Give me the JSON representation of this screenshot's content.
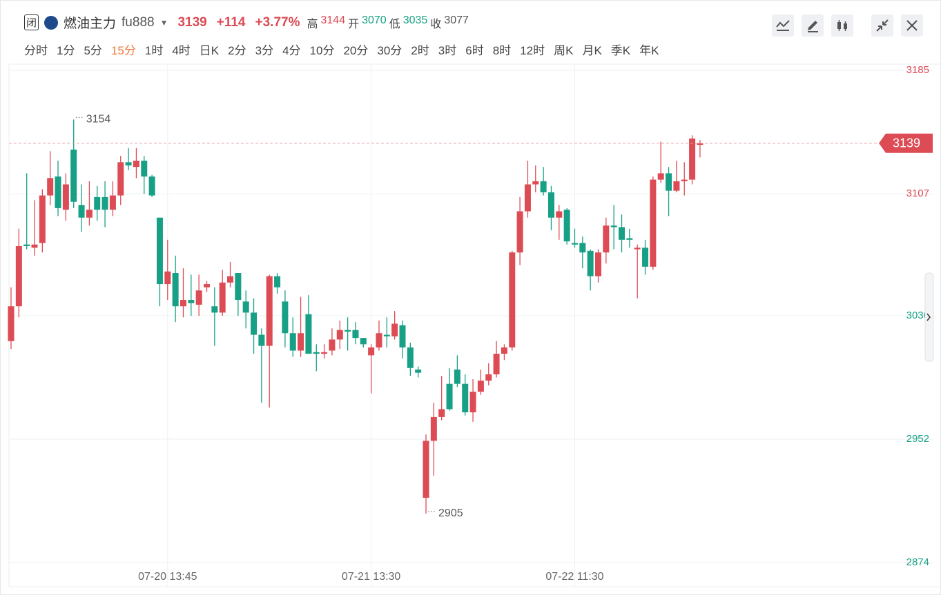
{
  "header": {
    "status": "闭",
    "name": "燃油主力",
    "code": "fu888",
    "price": 3139,
    "change": "+114",
    "change_pct": "+3.77%",
    "stats": [
      {
        "label": "高",
        "value": 3144,
        "color": "#dd4b55"
      },
      {
        "label": "开",
        "value": 3070,
        "color": "#17a085"
      },
      {
        "label": "低",
        "value": 3035,
        "color": "#17a085"
      },
      {
        "label": "收",
        "value": 3077,
        "color": "#555"
      }
    ]
  },
  "timeframes": [
    "分时",
    "1分",
    "5分",
    "15分",
    "1时",
    "4时",
    "日K",
    "2分",
    "3分",
    "4分",
    "10分",
    "20分",
    "30分",
    "2时",
    "3时",
    "6时",
    "8时",
    "12时",
    "周K",
    "月K",
    "季K",
    "年K"
  ],
  "active_timeframe": "15分",
  "chart_data": {
    "type": "candlestick",
    "categories": [
      null,
      null,
      null,
      null,
      null,
      null,
      null,
      null,
      null,
      null,
      null,
      null,
      null,
      null,
      null,
      null,
      null,
      null,
      null,
      null,
      "07-20 13:45",
      null,
      null,
      null,
      null,
      null,
      null,
      null,
      null,
      null,
      null,
      null,
      null,
      null,
      null,
      null,
      null,
      null,
      null,
      null,
      null,
      null,
      null,
      null,
      null,
      null,
      "07-21 13:30",
      null,
      null,
      null,
      null,
      null,
      null,
      null,
      null,
      null,
      null,
      null,
      null,
      null,
      null,
      null,
      null,
      null,
      null,
      null,
      null,
      null,
      null,
      null,
      null,
      null,
      "07-22 11:30",
      null,
      null,
      null,
      null,
      null,
      null,
      null,
      null,
      null,
      null,
      null,
      null,
      null,
      null,
      null,
      null
    ],
    "open": [
      3014,
      3036,
      3075,
      3073,
      3076,
      3106,
      3118,
      3097,
      3135,
      3100,
      3092,
      3105,
      3105,
      3097,
      3106,
      3127,
      3124,
      3128,
      3118,
      3092,
      3050,
      3057,
      3036,
      3040,
      3037,
      3048,
      3036,
      3032,
      3051,
      3057,
      3039,
      3032,
      3018,
      3011,
      3055,
      3039,
      3019,
      3008,
      3031,
      3007,
      3006,
      3008,
      3015,
      3021,
      3021,
      3016,
      3005,
      3010,
      3018,
      3017,
      3024,
      3010,
      2996,
      2915,
      2951,
      2966,
      2987,
      2996,
      2987,
      2969,
      2982,
      2989,
      2993,
      3006,
      3010,
      3070,
      3096,
      3113,
      3115,
      3108,
      3092,
      3097,
      3076,
      3076,
      3071,
      3055,
      3070,
      3087,
      3086,
      3079,
      3072,
      3073,
      3061,
      3116,
      3120,
      3109,
      3115,
      3116,
      3138
    ],
    "high": [
      3048,
      3085,
      3120,
      3103,
      3110,
      3134,
      3128,
      3120,
      3154,
      3113,
      3115,
      3112,
      3115,
      3115,
      3131,
      3136,
      3136,
      3131,
      3119,
      3092,
      3078,
      3068,
      3060,
      3056,
      3056,
      3052,
      3048,
      3059,
      3064,
      3057,
      3046,
      3041,
      3022,
      3056,
      3057,
      3046,
      3029,
      3042,
      3043,
      3012,
      3012,
      3022,
      3027,
      3029,
      3026,
      3016,
      3012,
      3027,
      3029,
      3033,
      3027,
      3013,
      2998,
      2955,
      2975,
      2992,
      2997,
      3005,
      2993,
      2990,
      2996,
      3000,
      3014,
      3012,
      3071,
      3105,
      3128,
      3125,
      3124,
      3112,
      3100,
      3098,
      3085,
      3080,
      3072,
      3072,
      3092,
      3100,
      3094,
      3085,
      3075,
      3078,
      3118,
      3140,
      3124,
      3128,
      3127,
      3144,
      3141
    ],
    "low": [
      3009,
      3029,
      3072,
      3068,
      3070,
      3100,
      3093,
      3090,
      3098,
      3083,
      3087,
      3090,
      3086,
      3093,
      3100,
      3122,
      3117,
      3107,
      3105,
      3036,
      3040,
      3026,
      3029,
      3030,
      3030,
      3045,
      3011,
      3030,
      3048,
      3030,
      3022,
      3006,
      2975,
      2972,
      3044,
      3010,
      3004,
      3004,
      3006,
      2995,
      3003,
      3005,
      3009,
      3008,
      3012,
      3010,
      2981,
      3008,
      3010,
      3015,
      3003,
      2992,
      2991,
      2905,
      2929,
      2964,
      2970,
      2985,
      2967,
      2963,
      2980,
      2986,
      2991,
      3002,
      3008,
      3062,
      3092,
      3108,
      3106,
      3084,
      3078,
      3075,
      3073,
      3060,
      3046,
      3051,
      3063,
      3072,
      3070,
      3073,
      3041,
      3056,
      3059,
      3114,
      3093,
      3108,
      3106,
      3113,
      3130
    ],
    "close": [
      3036,
      3074,
      3074,
      3075,
      3106,
      3117,
      3098,
      3113,
      3102,
      3092,
      3097,
      3097,
      3097,
      3106,
      3127,
      3125,
      3128,
      3118,
      3106,
      3050,
      3058,
      3036,
      3040,
      3038,
      3046,
      3050,
      3032,
      3051,
      3055,
      3040,
      3032,
      3018,
      3011,
      3055,
      3048,
      3019,
      3008,
      3019,
      3006,
      3006,
      3007,
      3015,
      3021,
      3020,
      3016,
      3012,
      3010,
      3019,
      3017,
      3025,
      3010,
      2997,
      2994,
      2951,
      2966,
      2971,
      2971,
      2987,
      2969,
      2982,
      2989,
      2993,
      3006,
      3010,
      3070,
      3096,
      3113,
      3115,
      3108,
      3092,
      3096,
      3077,
      3075,
      3070,
      3055,
      3070,
      3087,
      3086,
      3078,
      3078,
      3073,
      3061,
      3116,
      3120,
      3109,
      3115,
      3116,
      3142,
      3139
    ],
    "up_color": "#dd4b55",
    "down_color": "#17a085",
    "ylim": [
      2871,
      3189
    ],
    "yticks": [
      3185,
      3107,
      3030,
      2952,
      2874
    ],
    "ytick_colors": [
      "#dd4b55",
      "#dd4b55",
      "#17a085",
      "#17a085",
      "#17a085"
    ],
    "grid": true,
    "last_price": 3139,
    "high_label": 3154,
    "low_label": 2905
  }
}
